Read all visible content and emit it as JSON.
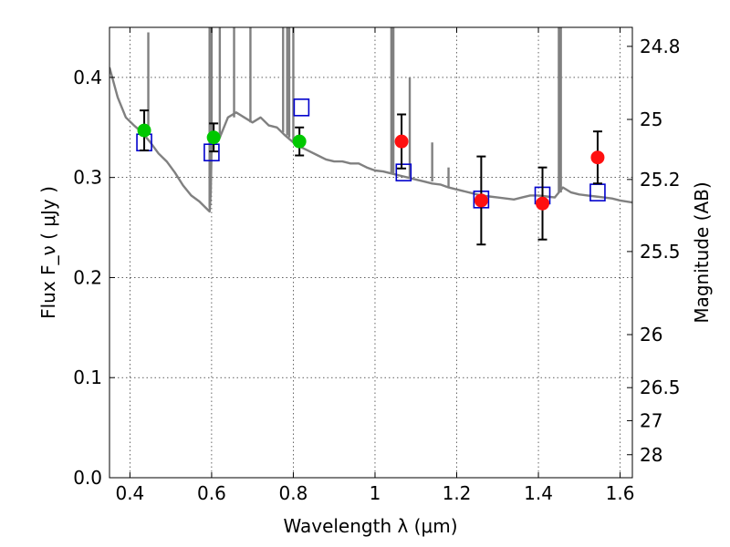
{
  "chart_data": {
    "type": "scatter",
    "title": "",
    "xlabel": "Wavelength  λ (μm)",
    "ylabel": "Flux  F_ν  ( μJy )",
    "ylabel_right": "Magnitude (AB)",
    "xlim": [
      0.35,
      1.63
    ],
    "ylim": [
      0.0,
      0.45
    ],
    "grid": true,
    "x_ticks": [
      "0.4",
      "0.6",
      "0.8",
      "1",
      "1.2",
      "1.4",
      "1.6"
    ],
    "x_tick_values": [
      0.4,
      0.6,
      0.8,
      1.0,
      1.2,
      1.4,
      1.6
    ],
    "y_ticks": [
      "0.0",
      "0.1",
      "0.2",
      "0.3",
      "0.4"
    ],
    "y_tick_values": [
      0.0,
      0.1,
      0.2,
      0.3,
      0.4
    ],
    "right_ticks": [
      {
        "label": "24.8",
        "flux": 0.431
      },
      {
        "label": "25",
        "flux": 0.358
      },
      {
        "label": "25.2",
        "flux": 0.298
      },
      {
        "label": "25.5",
        "flux": 0.226
      },
      {
        "label": "26",
        "flux": 0.143
      },
      {
        "label": "26.5",
        "flux": 0.09
      },
      {
        "label": "27",
        "flux": 0.057
      },
      {
        "label": "28",
        "flux": 0.023
      }
    ],
    "series": [
      {
        "kind": "line",
        "color": "#808080",
        "x": [
          0.35,
          0.37,
          0.39,
          0.41,
          0.43,
          0.45,
          0.47,
          0.49,
          0.51,
          0.53,
          0.55,
          0.57,
          0.585,
          0.595,
          0.598,
          0.6,
          0.605,
          0.61,
          0.62,
          0.64,
          0.66,
          0.68,
          0.7,
          0.72,
          0.74,
          0.76,
          0.78,
          0.8,
          0.82,
          0.84,
          0.86,
          0.88,
          0.9,
          0.92,
          0.94,
          0.96,
          0.98,
          1.0,
          1.02,
          1.04,
          1.06,
          1.08,
          1.1,
          1.12,
          1.14,
          1.16,
          1.18,
          1.2,
          1.22,
          1.24,
          1.26,
          1.28,
          1.3,
          1.32,
          1.34,
          1.36,
          1.38,
          1.4,
          1.42,
          1.44,
          1.46,
          1.48,
          1.5,
          1.52,
          1.54,
          1.56,
          1.58,
          1.6,
          1.63
        ],
        "y": [
          0.41,
          0.38,
          0.36,
          0.352,
          0.345,
          0.335,
          0.324,
          0.316,
          0.305,
          0.292,
          0.282,
          0.276,
          0.27,
          0.266,
          0.285,
          0.33,
          0.34,
          0.342,
          0.34,
          0.36,
          0.365,
          0.36,
          0.355,
          0.36,
          0.352,
          0.35,
          0.342,
          0.335,
          0.33,
          0.326,
          0.322,
          0.318,
          0.316,
          0.316,
          0.314,
          0.314,
          0.31,
          0.307,
          0.306,
          0.304,
          0.302,
          0.3,
          0.298,
          0.296,
          0.294,
          0.293,
          0.29,
          0.288,
          0.286,
          0.284,
          0.282,
          0.281,
          0.28,
          0.279,
          0.278,
          0.28,
          0.282,
          0.282,
          0.281,
          0.28,
          0.29,
          0.285,
          0.283,
          0.282,
          0.281,
          0.28,
          0.279,
          0.277,
          0.275
        ]
      },
      {
        "kind": "markers",
        "marker": "circle",
        "color": "#00c800",
        "x": [
          0.435,
          0.605,
          0.815
        ],
        "y": [
          0.347,
          0.34,
          0.336
        ],
        "yerr": [
          0.02,
          0.014,
          0.014
        ]
      },
      {
        "kind": "markers",
        "marker": "circle",
        "color": "#ff1010",
        "x": [
          1.065,
          1.26,
          1.41,
          1.545
        ],
        "y": [
          0.336,
          0.277,
          0.274,
          0.32
        ],
        "yerr": [
          0.027,
          0.044,
          0.036,
          0.026
        ]
      },
      {
        "kind": "markers",
        "marker": "square",
        "color": "#0000cc",
        "x": [
          0.435,
          0.6,
          0.82,
          1.07,
          1.26,
          1.41,
          1.545
        ],
        "y": [
          0.335,
          0.325,
          0.37,
          0.305,
          0.278,
          0.282,
          0.285
        ]
      }
    ],
    "spikes": [
      {
        "x": 0.445,
        "top": 0.445,
        "base": 0.345
      },
      {
        "x": 0.595,
        "top": 0.46,
        "base": 0.27
      },
      {
        "x": 0.6,
        "top": 0.46,
        "base": 0.33
      },
      {
        "x": 0.62,
        "top": 0.46,
        "base": 0.34
      },
      {
        "x": 0.655,
        "top": 0.46,
        "base": 0.36
      },
      {
        "x": 0.695,
        "top": 0.46,
        "base": 0.355
      },
      {
        "x": 0.775,
        "top": 0.46,
        "base": 0.345
      },
      {
        "x": 0.785,
        "top": 0.46,
        "base": 0.342
      },
      {
        "x": 0.79,
        "top": 0.46,
        "base": 0.34
      },
      {
        "x": 0.8,
        "top": 0.46,
        "base": 0.335
      },
      {
        "x": 1.04,
        "top": 0.46,
        "base": 0.304
      },
      {
        "x": 1.045,
        "top": 0.46,
        "base": 0.304
      },
      {
        "x": 1.085,
        "top": 0.4,
        "base": 0.3
      },
      {
        "x": 1.14,
        "top": 0.335,
        "base": 0.296
      },
      {
        "x": 1.18,
        "top": 0.31,
        "base": 0.29
      },
      {
        "x": 1.45,
        "top": 0.46,
        "base": 0.285
      },
      {
        "x": 1.455,
        "top": 0.46,
        "base": 0.285
      }
    ]
  }
}
